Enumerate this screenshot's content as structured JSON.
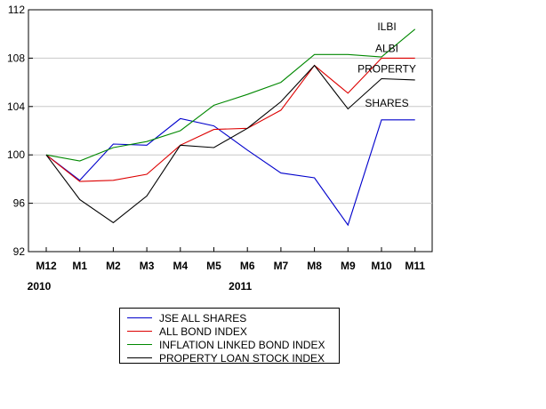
{
  "chart_data": {
    "type": "line",
    "categories": [
      "M12",
      "M1",
      "M2",
      "M3",
      "M4",
      "M5",
      "M6",
      "M7",
      "M8",
      "M9",
      "M10",
      "M11"
    ],
    "year_labels": [
      {
        "label": "2010",
        "category": "M12"
      },
      {
        "label": "2011",
        "category": "M6"
      }
    ],
    "ylim": [
      92,
      112
    ],
    "yticks": [
      92,
      96,
      100,
      104,
      108,
      112
    ],
    "grid": true,
    "legend_position": "bottom",
    "series": [
      {
        "name": "JSE ALL SHARES",
        "color": "#0000cc",
        "values": [
          100,
          97.9,
          100.9,
          100.8,
          103.0,
          102.4,
          100.4,
          98.5,
          98.1,
          94.2,
          102.9,
          102.9
        ]
      },
      {
        "name": "ALL BOND INDEX",
        "color": "#dd0000",
        "values": [
          100,
          97.8,
          97.9,
          98.4,
          100.8,
          102.1,
          102.2,
          103.7,
          107.4,
          105.1,
          108.0,
          108.0
        ]
      },
      {
        "name": "INFLATION LINKED BOND INDEX",
        "color": "#008800",
        "values": [
          100,
          99.5,
          100.6,
          101.1,
          102.0,
          104.1,
          105.0,
          106.0,
          108.3,
          108.3,
          108.1,
          110.4
        ]
      },
      {
        "name": "PROPERTY LOAN STOCK INDEX",
        "color": "#000000",
        "values": [
          100,
          96.3,
          94.4,
          96.6,
          100.8,
          100.6,
          102.2,
          104.4,
          107.4,
          103.8,
          106.3,
          106.2
        ]
      }
    ],
    "annotations": [
      {
        "text": "ILBI",
        "category": "M10",
        "y": 110.3
      },
      {
        "text": "ALBI",
        "category": "M10",
        "y": 108.5
      },
      {
        "text": "PROPERTY",
        "category": "M10",
        "y": 106.8
      },
      {
        "text": "SHARES",
        "category": "M10",
        "y": 104.0
      }
    ]
  }
}
